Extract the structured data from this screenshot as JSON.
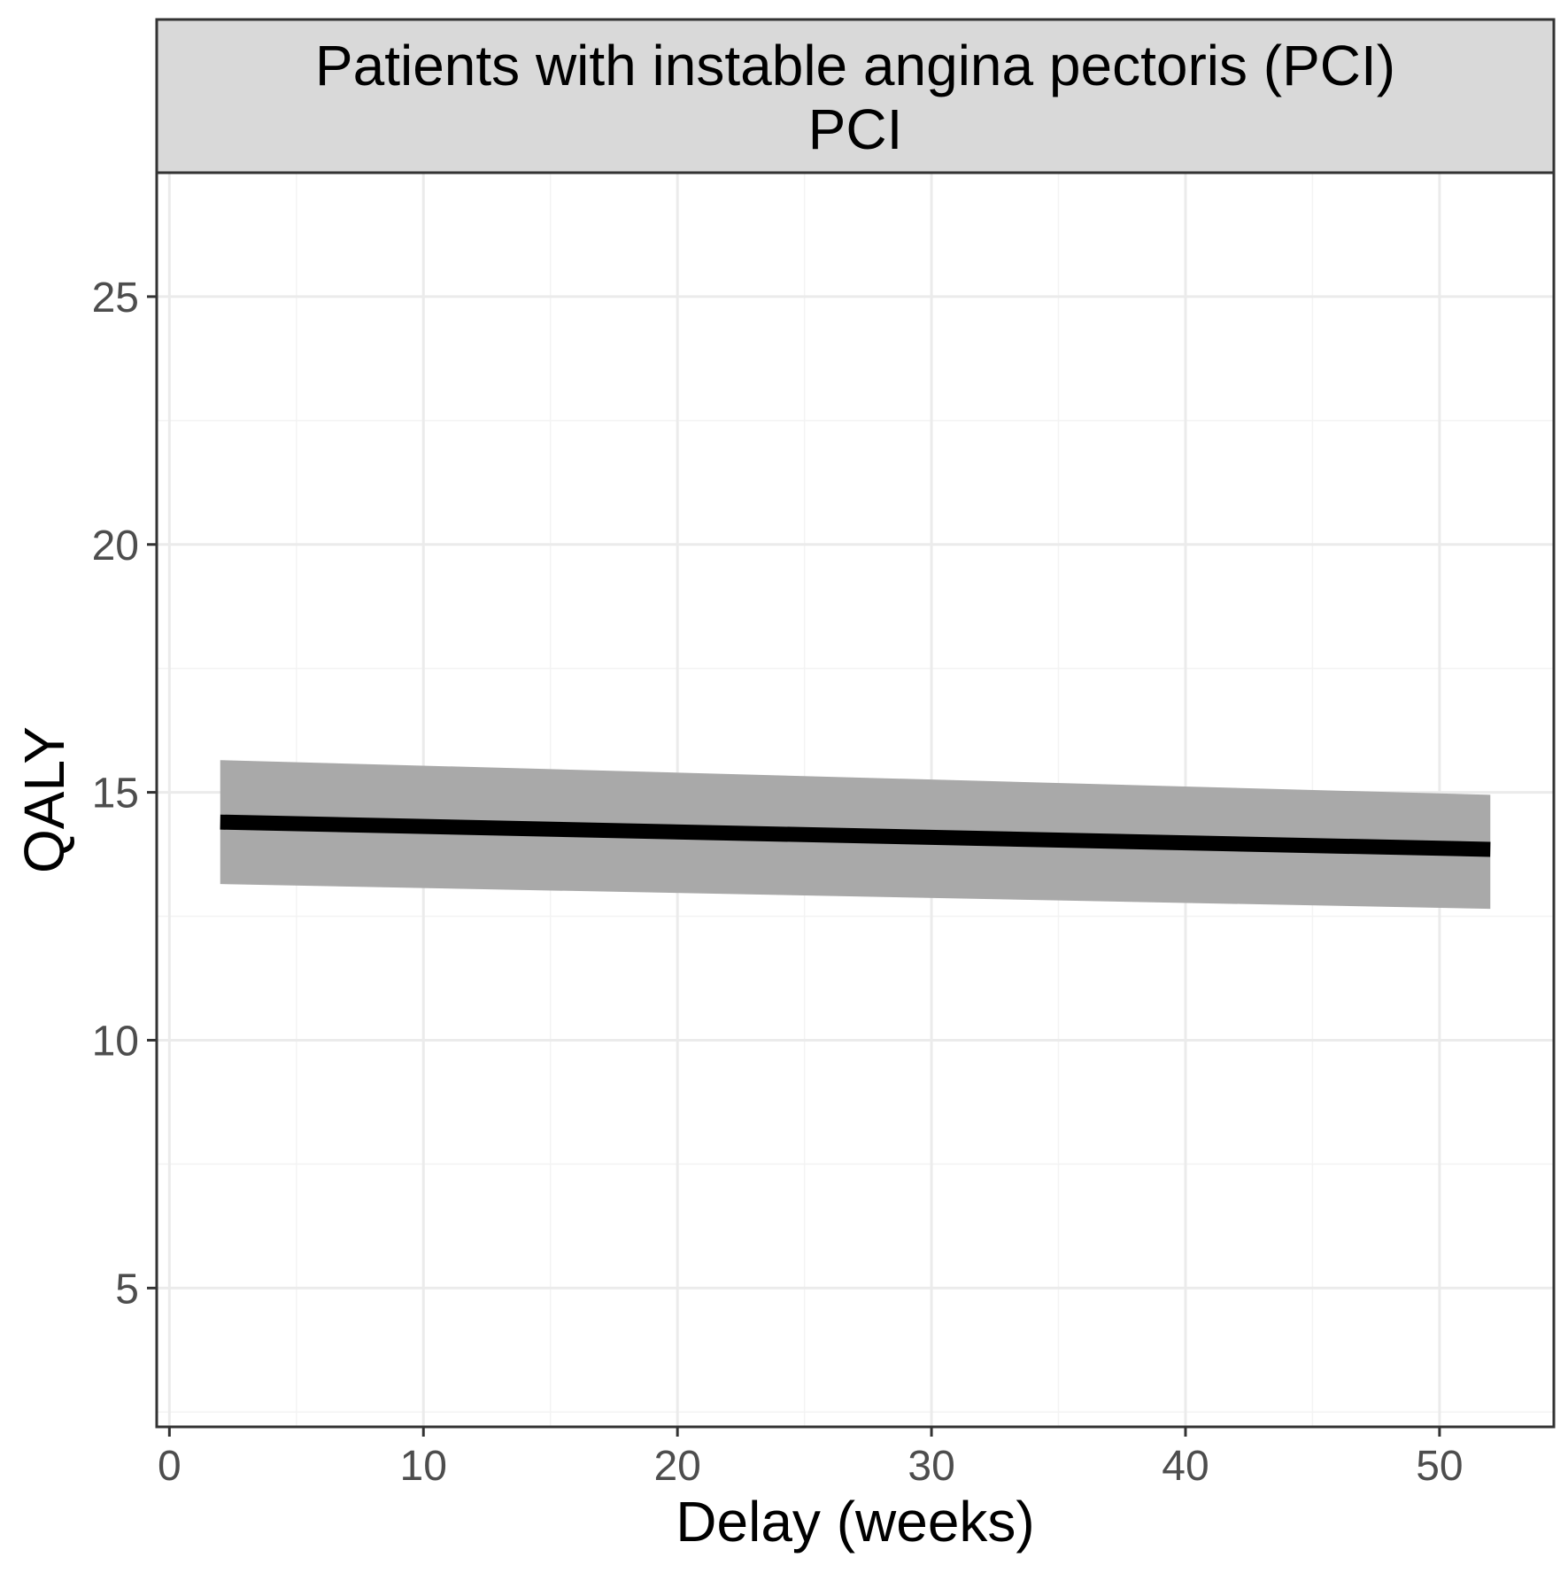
{
  "chart_data": {
    "type": "line",
    "strip_title_lines": [
      "Patients with instable angina pectoris (PCI)",
      "PCI"
    ],
    "xlabel": "Delay (weeks)",
    "ylabel": "QALY",
    "xlim": [
      -0.5,
      54.5
    ],
    "ylim": [
      2.2,
      27.5
    ],
    "x_ticks": [
      0,
      10,
      20,
      30,
      40,
      50
    ],
    "x_tick_labels": [
      "0",
      "10",
      "20",
      "30",
      "40",
      "50"
    ],
    "y_ticks": [
      5,
      10,
      15,
      20,
      25
    ],
    "y_tick_labels": [
      "5",
      "10",
      "15",
      "20",
      "25"
    ],
    "x_minor_ticks": [
      5,
      15,
      25,
      35,
      45
    ],
    "y_minor_ticks": [
      2.5,
      7.5,
      12.5,
      17.5,
      22.5
    ],
    "grid": true,
    "series": [
      {
        "x": [
          2,
          52
        ],
        "y": [
          14.4,
          13.85
        ],
        "lower": [
          13.15,
          12.65
        ],
        "upper": [
          15.65,
          14.95
        ],
        "color": "#000000",
        "band_color": "#a9a9a9"
      }
    ],
    "colors": {
      "panel_border": "#333333",
      "strip_fill": "#d9d9d9",
      "grid_major": "#ebebeb",
      "grid_minor": "#f3f3f3",
      "tick_label": "#4d4d4d",
      "axis_title": "#000000"
    }
  }
}
